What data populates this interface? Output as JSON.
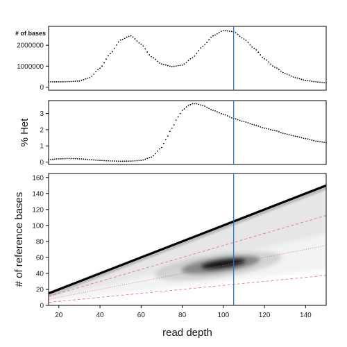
{
  "chart_data": [
    {
      "type": "scatter",
      "panel": "top",
      "ylabel": "# of bases",
      "xlim": [
        15,
        150
      ],
      "ylim": [
        -150000,
        2900000
      ],
      "yticks": [
        0,
        1000000,
        2000000
      ],
      "ytick_labels": [
        "0",
        "1000000",
        "2000000"
      ],
      "series": [
        {
          "style": "dotted",
          "color": "#000000",
          "x": [
            15,
            20,
            25,
            30,
            35,
            40,
            45,
            50,
            55,
            60,
            65,
            70,
            75,
            80,
            85,
            90,
            95,
            100,
            105,
            110,
            115,
            120,
            125,
            130,
            135,
            140,
            145,
            150
          ],
          "y": [
            250000,
            250000,
            260000,
            290000,
            450000,
            900000,
            1600000,
            2250000,
            2450000,
            2050000,
            1450000,
            1100000,
            980000,
            1050000,
            1400000,
            1950000,
            2450000,
            2700000,
            2650000,
            2300000,
            1850000,
            1350000,
            950000,
            650000,
            450000,
            320000,
            250000,
            200000
          ]
        }
      ],
      "vline": {
        "x": 105,
        "color": "#1f6fd1"
      }
    },
    {
      "type": "scatter",
      "panel": "middle",
      "ylabel": "% Het",
      "xlim": [
        15,
        150
      ],
      "ylim": [
        -0.15,
        3.8
      ],
      "yticks": [
        0,
        1,
        2,
        3
      ],
      "ytick_labels": [
        "0",
        "1",
        "2",
        "3"
      ],
      "series": [
        {
          "style": "dotted",
          "color": "#000000",
          "x": [
            15,
            20,
            25,
            30,
            35,
            40,
            45,
            50,
            55,
            60,
            65,
            70,
            72,
            75,
            78,
            80,
            83,
            85,
            87,
            90,
            95,
            100,
            105,
            110,
            115,
            120,
            125,
            130,
            135,
            140,
            145,
            150
          ],
          "y": [
            0.15,
            0.2,
            0.22,
            0.2,
            0.15,
            0.1,
            0.07,
            0.05,
            0.06,
            0.1,
            0.3,
            0.9,
            1.4,
            2.1,
            2.8,
            3.2,
            3.5,
            3.6,
            3.6,
            3.5,
            3.2,
            2.95,
            2.7,
            2.5,
            2.3,
            2.1,
            1.95,
            1.75,
            1.6,
            1.45,
            1.3,
            1.2
          ]
        }
      ],
      "vline": {
        "x": 105,
        "color": "#1f6fd1"
      }
    },
    {
      "type": "heatmap",
      "panel": "bottom",
      "xlabel": "read depth",
      "ylabel": "# of reference bases",
      "xlim": [
        15,
        150
      ],
      "ylim": [
        0,
        165
      ],
      "xticks": [
        20,
        40,
        60,
        80,
        100,
        120,
        140
      ],
      "xtick_labels": [
        "20",
        "40",
        "60",
        "80",
        "100",
        "120",
        "140"
      ],
      "yticks": [
        0,
        20,
        40,
        60,
        80,
        100,
        120,
        140,
        160
      ],
      "ytick_labels": [
        "0",
        "20",
        "40",
        "60",
        "80",
        "100",
        "120",
        "140",
        "160"
      ],
      "diagonal_ridge": {
        "slope": 1.0,
        "x_range": [
          15,
          150
        ]
      },
      "hotspot": {
        "x": 100,
        "y": 52,
        "sx": 12,
        "sy": 6
      },
      "guide_lines": [
        {
          "slope": 0.75,
          "style": "dashed",
          "color": "#e06060"
        },
        {
          "slope": 0.5,
          "style": "dotted",
          "color": "#e06060"
        },
        {
          "slope": 0.25,
          "style": "dashed",
          "color": "#e06060"
        }
      ],
      "vline": {
        "x": 105,
        "color": "#1f6fd1"
      }
    }
  ]
}
